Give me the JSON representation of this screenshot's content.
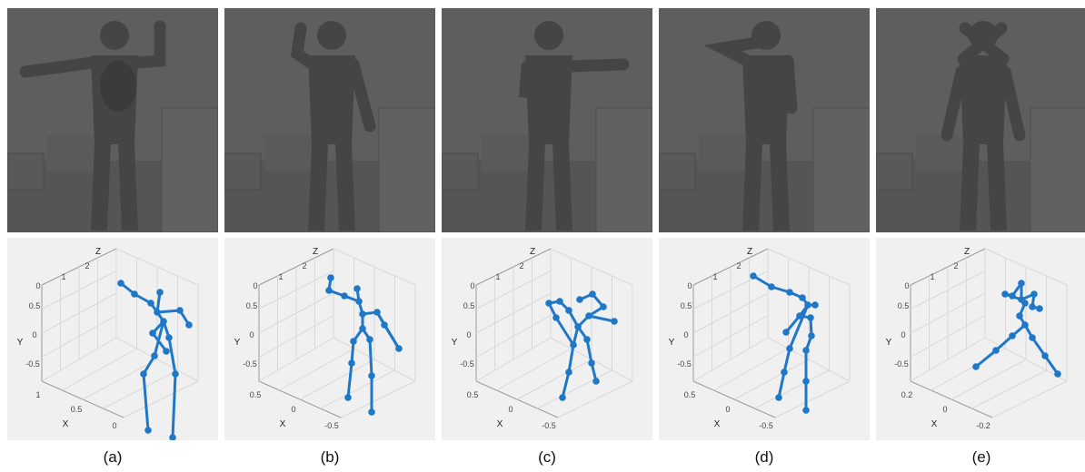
{
  "panels": [
    {
      "caption": "(a)",
      "axis_names": {
        "x": "X",
        "y": "Y",
        "z": "Z"
      },
      "ticks": {
        "z": [
          "2",
          "1",
          "0"
        ],
        "y": [
          "0.5",
          "0",
          "-0.5"
        ],
        "x": [
          "1",
          "0.5",
          "0"
        ]
      },
      "pose": "arms-out"
    },
    {
      "caption": "(b)",
      "axis_names": {
        "x": "X",
        "y": "Y",
        "z": "Z"
      },
      "ticks": {
        "z": [
          "2",
          "1",
          "0"
        ],
        "y": [
          "0.5",
          "0",
          "-0.5"
        ],
        "x": [
          "0.5",
          "0",
          "-0.5"
        ]
      },
      "pose": "arm-up"
    },
    {
      "caption": "(c)",
      "axis_names": {
        "x": "X",
        "y": "Y",
        "z": "Z"
      },
      "ticks": {
        "z": [
          "2",
          "1",
          "0"
        ],
        "y": [
          "0.5",
          "0",
          "-0.5"
        ],
        "x": [
          "0.5",
          "0",
          "-0.5"
        ]
      },
      "pose": "arm-bent"
    },
    {
      "caption": "(d)",
      "axis_names": {
        "x": "X",
        "y": "Y",
        "z": "Z"
      },
      "ticks": {
        "z": [
          "2",
          "1",
          "0"
        ],
        "y": [
          "0.5",
          "0",
          "-0.5"
        ],
        "x": [
          "0.5",
          "0",
          "-0.5"
        ]
      },
      "pose": "arm-forward"
    },
    {
      "caption": "(e)",
      "axis_names": {
        "x": "X",
        "y": "Y",
        "z": "Z"
      },
      "ticks": {
        "z": [
          "2",
          "1",
          "0"
        ],
        "y": [
          "0.5",
          "0",
          "-0.5"
        ],
        "x": [
          "0.2",
          "0",
          "-0.2"
        ]
      },
      "pose": "arms-crossed"
    }
  ],
  "colors": {
    "skeleton": "#1f77c8",
    "depth_bg": "#5e5e5e",
    "depth_person": "#454545",
    "plot_bg": "#f0f0f0",
    "grid": "#d9d9d9"
  }
}
